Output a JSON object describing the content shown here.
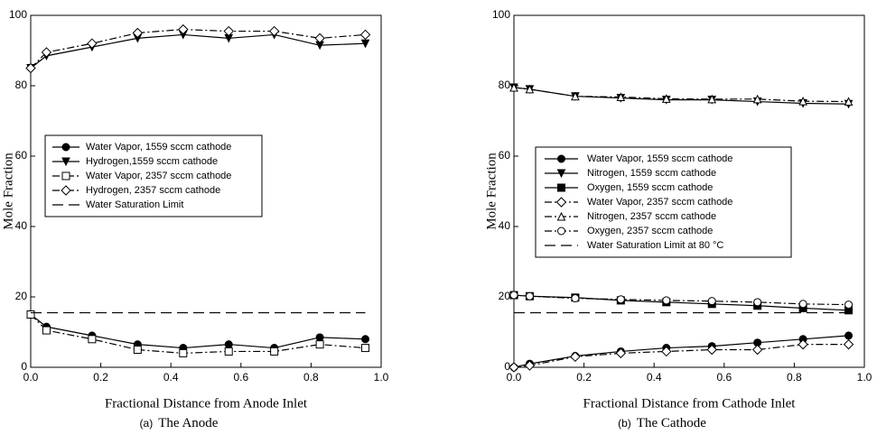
{
  "chart_data": [
    {
      "type": "line",
      "caption_tag": "(a)",
      "caption": "The Anode",
      "xlabel": "Fractional Distance from Anode Inlet",
      "ylabel": "Mole Fraction",
      "x": [
        0,
        0.045,
        0.175,
        0.305,
        0.435,
        0.565,
        0.695,
        0.825,
        0.955
      ],
      "xlim": [
        0,
        1
      ],
      "xticks": [
        {
          "value": 0,
          "label": "0.0"
        },
        0.2,
        0.4,
        0.6,
        0.8,
        {
          "value": 1,
          "label": "1.0"
        }
      ],
      "ylim": [
        0,
        100
      ],
      "yticks": [
        0,
        20,
        40,
        60,
        80,
        100
      ],
      "legend": "center-left",
      "series": [
        {
          "name": "Water Vapor, 1559 sccm cathode",
          "color": "#000000",
          "marker": "circle-filled",
          "dash": "solid",
          "values": [
            15,
            11.5,
            9,
            6.5,
            5.5,
            6.5,
            5.5,
            8.5,
            8
          ]
        },
        {
          "name": "Hydrogen,1559 sccm cathode",
          "color": "#000000",
          "marker": "triangle-down-filled",
          "dash": "solid",
          "values": [
            85,
            88.5,
            91,
            93.5,
            94.5,
            93.5,
            94.5,
            91.5,
            92
          ]
        },
        {
          "name": "Water Vapor, 2357 sccm cathode",
          "color": "#000000",
          "marker": "square-open",
          "dash": "dash-dot",
          "values": [
            15,
            10.5,
            8,
            5,
            4,
            4.5,
            4.5,
            6.5,
            5.5
          ]
        },
        {
          "name": "Hydrogen, 2357 sccm cathode",
          "color": "#000000",
          "marker": "diamond-open",
          "dash": "dash-dot",
          "values": [
            85,
            89.5,
            92,
            95,
            96,
            95.5,
            95.5,
            93.5,
            94.5
          ]
        },
        {
          "name": "Water Saturation Limit",
          "color": "#000000",
          "marker": "none",
          "dash": "long-dash",
          "values": [
            15.5,
            15.5,
            15.5,
            15.5,
            15.5,
            15.5,
            15.5,
            15.5,
            15.5
          ]
        }
      ]
    },
    {
      "type": "line",
      "caption_tag": "(b)",
      "caption": "The Cathode",
      "xlabel": "Fractional Distance from Cathode Inlet",
      "ylabel": "Mole Fraction",
      "x": [
        0,
        0.045,
        0.175,
        0.305,
        0.435,
        0.565,
        0.695,
        0.825,
        0.955
      ],
      "xlim": [
        0,
        1
      ],
      "xticks": [
        {
          "value": 0,
          "label": "0.0"
        },
        0.2,
        0.4,
        0.6,
        0.8,
        {
          "value": 1,
          "label": "1.0"
        }
      ],
      "ylim": [
        0,
        100
      ],
      "yticks": [
        0,
        20,
        40,
        60,
        80,
        100
      ],
      "legend": "center-left",
      "series": [
        {
          "name": "Water Vapor, 1559 sccm cathode",
          "color": "#000000",
          "marker": "circle-filled",
          "dash": "solid",
          "values": [
            0,
            1,
            3.2,
            4.5,
            5.5,
            6,
            7,
            8,
            9
          ]
        },
        {
          "name": "Nitrogen, 1559 sccm cathode",
          "color": "#000000",
          "marker": "triangle-down-filled",
          "dash": "solid",
          "values": [
            79.5,
            79,
            77,
            76.5,
            76,
            76,
            75.5,
            75,
            74.8
          ]
        },
        {
          "name": "Oxygen, 1559 sccm cathode",
          "color": "#000000",
          "marker": "square-filled",
          "dash": "solid",
          "values": [
            20.5,
            20.2,
            19.8,
            19,
            18.5,
            18,
            17.5,
            16.8,
            16.2
          ]
        },
        {
          "name": "Water Vapor, 2357 sccm cathode",
          "color": "#000000",
          "marker": "diamond-open",
          "dash": "dash-dot",
          "values": [
            0,
            0.5,
            3,
            4,
            4.5,
            5,
            5,
            6.5,
            6.5
          ]
        },
        {
          "name": "Nitrogen, 2357 sccm cathode",
          "color": "#000000",
          "marker": "triangle-up-open",
          "dash": "dash-dot",
          "values": [
            79.5,
            79,
            77,
            76.8,
            76.3,
            76.2,
            76.2,
            75.6,
            75.5
          ]
        },
        {
          "name": "Oxygen, 2357 sccm cathode",
          "color": "#000000",
          "marker": "circle-open",
          "dash": "dash-dot",
          "values": [
            20.5,
            20.2,
            19.6,
            19.3,
            19,
            18.8,
            18.5,
            18,
            17.8
          ]
        },
        {
          "name": "Water Saturation Limit at 80 °C",
          "color": "#000000",
          "marker": "none",
          "dash": "long-dash",
          "values": [
            15.5,
            15.5,
            15.5,
            15.5,
            15.5,
            15.5,
            15.5,
            15.5,
            15.5
          ]
        }
      ]
    }
  ]
}
